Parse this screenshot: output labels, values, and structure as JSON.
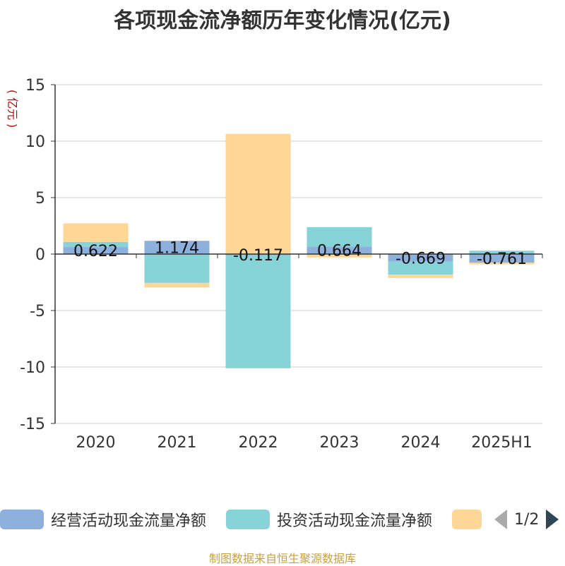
{
  "title": "各项现金流净额历年变化情况(亿元)",
  "unit_label": "(亿元)",
  "source": "制图数据来自恒生聚源数据库",
  "legend": {
    "items": [
      {
        "label": "经营活动现金流量净额",
        "color": "#8eb0dc"
      },
      {
        "label": "投资活动现金流量净额",
        "color": "#86d4d8"
      },
      {
        "label": "",
        "color": "#fed797"
      }
    ],
    "pager": "1/2"
  },
  "chart_data": {
    "type": "bar",
    "stacked": true,
    "categories": [
      "2020",
      "2021",
      "2022",
      "2023",
      "2024",
      "2025H1"
    ],
    "ylim": [
      -15,
      15
    ],
    "yticks": [
      15,
      10,
      5,
      0,
      -5,
      -10,
      -15
    ],
    "grid": true,
    "legend_position": "bottom",
    "series": [
      {
        "name": "经营活动现金流量净额",
        "color": "#8eb0dc",
        "values": [
          0.622,
          1.174,
          -0.117,
          0.664,
          -0.669,
          -0.761
        ],
        "labels": [
          "0.622",
          "1.174",
          "-0.117",
          "0.664",
          "-0.669",
          "-0.761"
        ]
      },
      {
        "name": "投资活动现金流量净额",
        "color": "#86d4d8",
        "values": [
          0.45,
          -2.55,
          -10.0,
          1.72,
          -1.15,
          0.3
        ]
      },
      {
        "color": "#fed797",
        "values": [
          1.65,
          -0.4,
          10.65,
          -0.3,
          -0.3,
          -0.15
        ]
      }
    ]
  }
}
